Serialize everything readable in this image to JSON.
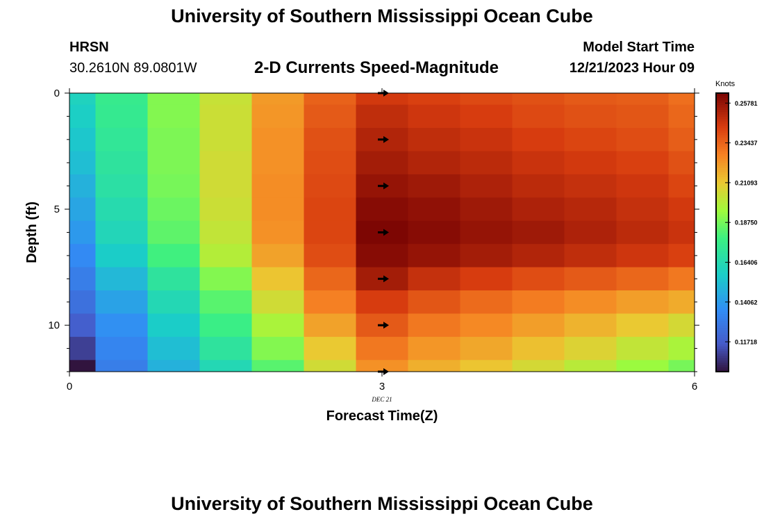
{
  "page": {
    "title": "University of Southern Mississippi Ocean Cube",
    "title_repeat": "University of Southern Mississippi Ocean Cube",
    "station": {
      "name": "HRSN",
      "coords": "30.2610N  89.0801W"
    },
    "subtitle": "2-D Currents Speed-Magnitude",
    "model": {
      "label": "Model Start Time",
      "value": "12/21/2023 Hour 09"
    }
  },
  "chart_data": {
    "type": "heatmap",
    "title": "2-D Currents Speed-Magnitude",
    "xlabel": "Forecast Time(Z)",
    "ylabel": "Depth (ft)",
    "x_date_label": "DEC 21",
    "xlim": [
      0,
      6
    ],
    "ylim": [
      0,
      12
    ],
    "x_ticks": [
      0,
      3,
      6
    ],
    "y_ticks": [
      0,
      5,
      10
    ],
    "x_centers": [
      0,
      0.5,
      1,
      1.5,
      2,
      2.5,
      3,
      3.5,
      4,
      4.5,
      5,
      5.5,
      6
    ],
    "y_centers": [
      0,
      1,
      2,
      3,
      4,
      5,
      6,
      7,
      8,
      9,
      10,
      11,
      12
    ],
    "colorbar": {
      "label": "Knots",
      "min": 0.0996,
      "max": 0.2637,
      "ticks": [
        0.11718,
        0.14062,
        0.164,
        0.1875,
        0.21093,
        0.23437,
        0.25781
      ],
      "tick_labels": [
        "0.11718",
        "0.14062",
        "0.16406",
        "0.18750",
        "0.21093",
        "0.23437",
        "0.25781"
      ]
    },
    "values": [
      [
        0.16,
        0.175,
        0.19,
        0.203,
        0.222,
        0.235,
        0.245,
        0.243,
        0.241,
        0.239,
        0.237,
        0.236,
        0.232
      ],
      [
        0.158,
        0.174,
        0.19,
        0.204,
        0.223,
        0.237,
        0.249,
        0.246,
        0.244,
        0.241,
        0.239,
        0.238,
        0.234
      ],
      [
        0.155,
        0.172,
        0.189,
        0.204,
        0.224,
        0.239,
        0.252,
        0.249,
        0.247,
        0.244,
        0.242,
        0.24,
        0.236
      ],
      [
        0.152,
        0.17,
        0.189,
        0.205,
        0.224,
        0.24,
        0.255,
        0.252,
        0.25,
        0.247,
        0.245,
        0.243,
        0.239
      ],
      [
        0.148,
        0.168,
        0.188,
        0.205,
        0.225,
        0.241,
        0.258,
        0.256,
        0.253,
        0.25,
        0.248,
        0.246,
        0.242
      ],
      [
        0.144,
        0.165,
        0.186,
        0.204,
        0.225,
        0.242,
        0.261,
        0.259,
        0.256,
        0.253,
        0.251,
        0.248,
        0.245
      ],
      [
        0.14,
        0.162,
        0.184,
        0.202,
        0.224,
        0.242,
        0.263,
        0.261,
        0.258,
        0.256,
        0.253,
        0.25,
        0.247
      ],
      [
        0.135,
        0.157,
        0.179,
        0.199,
        0.22,
        0.24,
        0.261,
        0.258,
        0.255,
        0.252,
        0.249,
        0.246,
        0.243
      ],
      [
        0.13,
        0.15,
        0.17,
        0.19,
        0.212,
        0.234,
        0.255,
        0.248,
        0.244,
        0.24,
        0.237,
        0.234,
        0.23
      ],
      [
        0.125,
        0.143,
        0.163,
        0.183,
        0.205,
        0.228,
        0.244,
        0.238,
        0.233,
        0.229,
        0.225,
        0.221,
        0.218
      ],
      [
        0.118,
        0.137,
        0.157,
        0.177,
        0.197,
        0.22,
        0.237,
        0.23,
        0.226,
        0.221,
        0.216,
        0.211,
        0.206
      ],
      [
        0.11,
        0.133,
        0.152,
        0.17,
        0.19,
        0.211,
        0.23,
        0.223,
        0.219,
        0.213,
        0.208,
        0.202,
        0.197
      ],
      [
        0.1,
        0.13,
        0.148,
        0.163,
        0.183,
        0.205,
        0.224,
        0.217,
        0.212,
        0.206,
        0.2,
        0.194,
        0.188
      ]
    ],
    "direction_arrows": [
      {
        "x": 3,
        "depth": 0
      },
      {
        "x": 3,
        "depth": 2
      },
      {
        "x": 3,
        "depth": 4
      },
      {
        "x": 3,
        "depth": 6
      },
      {
        "x": 3,
        "depth": 8
      },
      {
        "x": 3,
        "depth": 10
      },
      {
        "x": 3,
        "depth": 12
      }
    ]
  }
}
